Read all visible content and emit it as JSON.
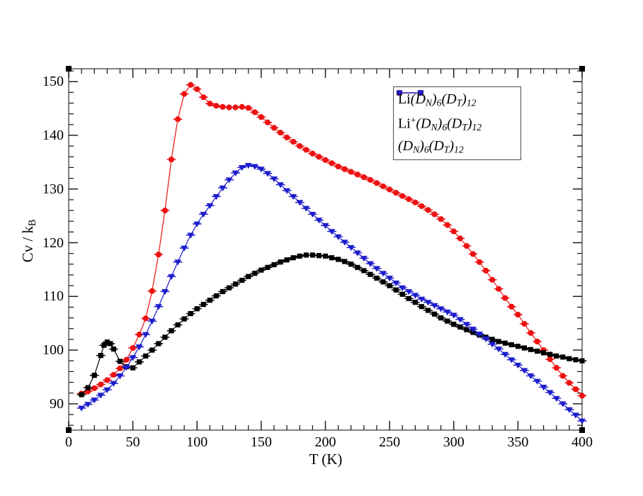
{
  "figure": {
    "background": "#ffffff",
    "frame_color": "#4d4d4d",
    "tick_color": "#111111",
    "handle_color": "#000000"
  },
  "chart_data": {
    "type": "line",
    "title": "",
    "xlabel": "T (K)",
    "ylabel": "Cv / kB",
    "ylabel_segments": [
      {
        "t": "Cv / k"
      },
      {
        "t": "B",
        "s": "sub"
      }
    ],
    "xlim": [
      0,
      400
    ],
    "ylim": [
      85.1,
      152.4
    ],
    "x_major_ticks": [
      0,
      50,
      100,
      150,
      200,
      250,
      300,
      350,
      400
    ],
    "x_minor_step": 10,
    "y_major_ticks": [
      90,
      100,
      110,
      120,
      130,
      140,
      150
    ],
    "y_minor_step": 2,
    "grid": false,
    "legend_position": "upper-right-inside",
    "series": [
      {
        "name": "Li(D_N)_6(D_T)_12",
        "color": "#ed1111",
        "symbol": "circle",
        "label_segments": [
          {
            "t": "Li"
          },
          {
            "t": "(",
            "i": 1
          },
          {
            "t": "D",
            "i": 1
          },
          {
            "t": "N",
            "i": 1,
            "s": "sub"
          },
          {
            "t": ")",
            "i": 1
          },
          {
            "t": "6",
            "i": 1,
            "s": "sub"
          },
          {
            "t": "(",
            "i": 1
          },
          {
            "t": "D",
            "i": 1
          },
          {
            "t": "T",
            "i": 1,
            "s": "sub"
          },
          {
            "t": ")",
            "i": 1
          },
          {
            "t": "12",
            "i": 1,
            "s": "sub"
          }
        ],
        "points": [
          [
            10,
            91.9
          ],
          [
            15,
            92.3
          ],
          [
            20,
            92.9
          ],
          [
            25,
            93.6
          ],
          [
            30,
            94.4
          ],
          [
            35,
            95.4
          ],
          [
            40,
            96.6
          ],
          [
            45,
            98.2
          ],
          [
            50,
            100.4
          ],
          [
            55,
            102.9
          ],
          [
            60,
            105.9
          ],
          [
            65,
            111.0
          ],
          [
            70,
            117.8
          ],
          [
            75,
            126.0
          ],
          [
            80,
            135.5
          ],
          [
            85,
            143.0
          ],
          [
            90,
            147.7
          ],
          [
            95,
            149.4
          ],
          [
            100,
            148.6
          ],
          [
            105,
            147.1
          ],
          [
            110,
            145.9
          ],
          [
            115,
            145.5
          ],
          [
            120,
            145.3
          ],
          [
            125,
            145.2
          ],
          [
            130,
            145.2
          ],
          [
            135,
            145.3
          ],
          [
            140,
            145.1
          ],
          [
            145,
            144.3
          ],
          [
            150,
            143.4
          ],
          [
            155,
            142.4
          ],
          [
            160,
            141.4
          ],
          [
            165,
            140.5
          ],
          [
            170,
            139.6
          ],
          [
            175,
            138.8
          ],
          [
            180,
            138.0
          ],
          [
            185,
            137.3
          ],
          [
            190,
            136.6
          ],
          [
            195,
            136.0
          ],
          [
            200,
            135.4
          ],
          [
            205,
            134.8
          ],
          [
            210,
            134.2
          ],
          [
            215,
            133.7
          ],
          [
            220,
            133.2
          ],
          [
            225,
            132.7
          ],
          [
            230,
            132.2
          ],
          [
            235,
            131.7
          ],
          [
            240,
            131.1
          ],
          [
            245,
            130.5
          ],
          [
            250,
            129.9
          ],
          [
            255,
            129.3
          ],
          [
            260,
            128.7
          ],
          [
            265,
            128.1
          ],
          [
            270,
            127.5
          ],
          [
            275,
            126.8
          ],
          [
            280,
            126.1
          ],
          [
            285,
            125.3
          ],
          [
            290,
            124.4
          ],
          [
            295,
            123.3
          ],
          [
            300,
            122.1
          ],
          [
            305,
            120.8
          ],
          [
            310,
            119.4
          ],
          [
            315,
            117.9
          ],
          [
            320,
            116.4
          ],
          [
            325,
            114.8
          ],
          [
            330,
            113.1
          ],
          [
            335,
            111.4
          ],
          [
            340,
            109.7
          ],
          [
            345,
            108.1
          ],
          [
            350,
            106.6
          ],
          [
            355,
            104.9
          ],
          [
            360,
            103.2
          ],
          [
            365,
            101.6
          ],
          [
            370,
            100.0
          ],
          [
            375,
            98.3
          ],
          [
            380,
            96.7
          ],
          [
            385,
            95.2
          ],
          [
            390,
            93.9
          ],
          [
            395,
            92.7
          ],
          [
            400,
            91.5
          ]
        ]
      },
      {
        "name": "Li+(D_N)_6(D_T)_12",
        "color": "#000000",
        "symbol": "square",
        "label_segments": [
          {
            "t": "Li"
          },
          {
            "t": "+",
            "s": "sup"
          },
          {
            "t": "(",
            "i": 1
          },
          {
            "t": "D",
            "i": 1
          },
          {
            "t": "N",
            "i": 1,
            "s": "sub"
          },
          {
            "t": ")",
            "i": 1
          },
          {
            "t": "6",
            "i": 1,
            "s": "sub"
          },
          {
            "t": "(",
            "i": 1
          },
          {
            "t": "D",
            "i": 1
          },
          {
            "t": "T",
            "i": 1,
            "s": "sub"
          },
          {
            "t": ")",
            "i": 1
          },
          {
            "t": "12",
            "i": 1,
            "s": "sub"
          }
        ],
        "points": [
          [
            10,
            91.7
          ],
          [
            15,
            93.0
          ],
          [
            20,
            95.3
          ],
          [
            25,
            99.0
          ],
          [
            27.5,
            100.9
          ],
          [
            30,
            101.5
          ],
          [
            32.5,
            101.2
          ],
          [
            35,
            100.2
          ],
          [
            40,
            97.9
          ],
          [
            45,
            96.9
          ],
          [
            50,
            96.7
          ],
          [
            55,
            97.8
          ],
          [
            60,
            98.9
          ],
          [
            65,
            100.0
          ],
          [
            70,
            101.2
          ],
          [
            75,
            102.4
          ],
          [
            80,
            103.6
          ],
          [
            85,
            104.7
          ],
          [
            90,
            105.8
          ],
          [
            95,
            106.8
          ],
          [
            100,
            107.7
          ],
          [
            105,
            108.5
          ],
          [
            110,
            109.3
          ],
          [
            115,
            110.1
          ],
          [
            120,
            110.9
          ],
          [
            125,
            111.6
          ],
          [
            130,
            112.3
          ],
          [
            135,
            113.0
          ],
          [
            140,
            113.7
          ],
          [
            145,
            114.3
          ],
          [
            150,
            114.9
          ],
          [
            155,
            115.4
          ],
          [
            160,
            115.9
          ],
          [
            165,
            116.4
          ],
          [
            170,
            116.8
          ],
          [
            175,
            117.2
          ],
          [
            180,
            117.5
          ],
          [
            185,
            117.7
          ],
          [
            190,
            117.7
          ],
          [
            195,
            117.6
          ],
          [
            200,
            117.5
          ],
          [
            205,
            117.2
          ],
          [
            210,
            116.9
          ],
          [
            215,
            116.5
          ],
          [
            220,
            116.0
          ],
          [
            225,
            115.4
          ],
          [
            230,
            114.8
          ],
          [
            235,
            114.1
          ],
          [
            240,
            113.4
          ],
          [
            245,
            112.7
          ],
          [
            250,
            112.0
          ],
          [
            255,
            111.2
          ],
          [
            260,
            110.4
          ],
          [
            265,
            109.6
          ],
          [
            270,
            108.9
          ],
          [
            275,
            108.1
          ],
          [
            280,
            107.4
          ],
          [
            285,
            106.7
          ],
          [
            290,
            106.0
          ],
          [
            295,
            105.4
          ],
          [
            300,
            104.8
          ],
          [
            305,
            104.3
          ],
          [
            310,
            103.8
          ],
          [
            315,
            103.3
          ],
          [
            320,
            102.8
          ],
          [
            325,
            102.4
          ],
          [
            330,
            102.0
          ],
          [
            335,
            101.6
          ],
          [
            340,
            101.3
          ],
          [
            345,
            101.0
          ],
          [
            350,
            100.7
          ],
          [
            355,
            100.4
          ],
          [
            360,
            100.1
          ],
          [
            365,
            99.8
          ],
          [
            370,
            99.5
          ],
          [
            375,
            99.2
          ],
          [
            380,
            98.9
          ],
          [
            385,
            98.7
          ],
          [
            390,
            98.4
          ],
          [
            395,
            98.2
          ],
          [
            400,
            98.0
          ]
        ]
      },
      {
        "name": "(D_N)_6(D_T)_12",
        "color": "#1c1ccd",
        "symbol": "triangle-down",
        "label_segments": [
          {
            "t": "(",
            "i": 1
          },
          {
            "t": "D",
            "i": 1
          },
          {
            "t": "N",
            "i": 1,
            "s": "sub"
          },
          {
            "t": ")",
            "i": 1
          },
          {
            "t": "6",
            "i": 1,
            "s": "sub"
          },
          {
            "t": "(",
            "i": 1
          },
          {
            "t": "D",
            "i": 1
          },
          {
            "t": "T",
            "i": 1,
            "s": "sub"
          },
          {
            "t": ")",
            "i": 1
          },
          {
            "t": "12",
            "i": 1,
            "s": "sub"
          }
        ],
        "points": [
          [
            10,
            89.2
          ],
          [
            15,
            89.9
          ],
          [
            20,
            90.7
          ],
          [
            25,
            91.6
          ],
          [
            30,
            92.6
          ],
          [
            35,
            93.8
          ],
          [
            40,
            95.2
          ],
          [
            45,
            96.8
          ],
          [
            50,
            98.6
          ],
          [
            55,
            100.6
          ],
          [
            60,
            102.9
          ],
          [
            65,
            105.4
          ],
          [
            70,
            108.1
          ],
          [
            75,
            110.9
          ],
          [
            80,
            113.7
          ],
          [
            85,
            116.4
          ],
          [
            90,
            119.0
          ],
          [
            95,
            121.4
          ],
          [
            100,
            123.5
          ],
          [
            105,
            125.3
          ],
          [
            110,
            126.9
          ],
          [
            115,
            128.6
          ],
          [
            120,
            130.2
          ],
          [
            125,
            131.7
          ],
          [
            130,
            133.0
          ],
          [
            135,
            134.0
          ],
          [
            140,
            134.4
          ],
          [
            145,
            134.2
          ],
          [
            150,
            133.7
          ],
          [
            155,
            132.9
          ],
          [
            160,
            131.9
          ],
          [
            165,
            130.8
          ],
          [
            170,
            129.7
          ],
          [
            175,
            128.6
          ],
          [
            180,
            127.5
          ],
          [
            185,
            126.4
          ],
          [
            190,
            125.3
          ],
          [
            195,
            124.2
          ],
          [
            200,
            123.2
          ],
          [
            205,
            122.1
          ],
          [
            210,
            121.1
          ],
          [
            215,
            120.1
          ],
          [
            220,
            119.1
          ],
          [
            225,
            118.1
          ],
          [
            230,
            117.1
          ],
          [
            235,
            116.1
          ],
          [
            240,
            115.2
          ],
          [
            245,
            114.3
          ],
          [
            250,
            113.4
          ],
          [
            255,
            112.5
          ],
          [
            260,
            111.6
          ],
          [
            265,
            110.9
          ],
          [
            270,
            110.2
          ],
          [
            275,
            109.5
          ],
          [
            280,
            108.9
          ],
          [
            285,
            108.3
          ],
          [
            290,
            107.7
          ],
          [
            295,
            107.1
          ],
          [
            300,
            106.5
          ],
          [
            305,
            105.7
          ],
          [
            310,
            104.8
          ],
          [
            315,
            103.9
          ],
          [
            320,
            103.0
          ],
          [
            325,
            102.1
          ],
          [
            330,
            101.1
          ],
          [
            335,
            100.2
          ],
          [
            340,
            99.2
          ],
          [
            345,
            98.2
          ],
          [
            350,
            97.2
          ],
          [
            355,
            96.2
          ],
          [
            360,
            95.2
          ],
          [
            365,
            94.2
          ],
          [
            370,
            93.1
          ],
          [
            375,
            92.1
          ],
          [
            380,
            91.0
          ],
          [
            385,
            90.0
          ],
          [
            390,
            88.9
          ],
          [
            395,
            87.9
          ],
          [
            400,
            86.8
          ]
        ]
      }
    ]
  }
}
